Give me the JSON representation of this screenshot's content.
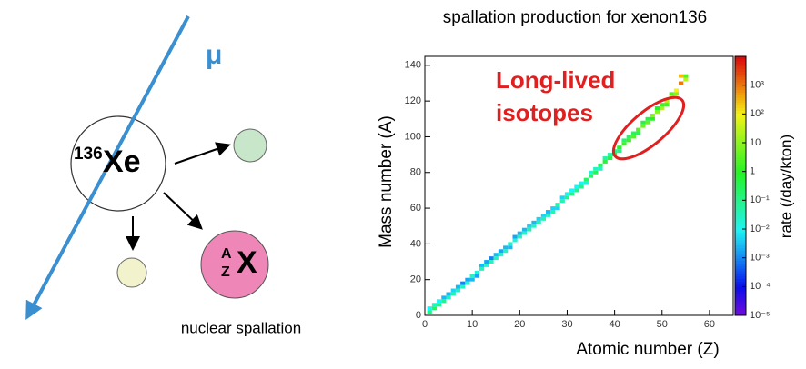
{
  "diagram": {
    "muon": "μ",
    "target_mass": "136",
    "target_symbol": "Xe",
    "product_mass": "A",
    "product_charge": "Z",
    "product_symbol": "X",
    "caption": "nuclear spallation"
  },
  "chart_data": {
    "type": "heatmap",
    "title": "spallation production for xenon136",
    "x_label": "Atomic number (Z)",
    "y_label": "Mass number (A)",
    "z_label": "rate (/day/kton)",
    "annotation": [
      "Long-lived",
      "isotopes"
    ],
    "xlim": [
      0,
      65
    ],
    "xticks": [
      0,
      10,
      20,
      30,
      40,
      50,
      60
    ],
    "ylim": [
      0,
      145
    ],
    "yticks": [
      0,
      20,
      40,
      60,
      80,
      100,
      120,
      140
    ],
    "zlim": [
      1e-05,
      10000
    ],
    "log_z": true,
    "zticks": [
      {
        "value": 1e-05,
        "label": "10⁻⁵"
      },
      {
        "value": 0.0001,
        "label": "10⁻⁴"
      },
      {
        "value": 0.001,
        "label": "10⁻³"
      },
      {
        "value": 0.01,
        "label": "10⁻²"
      },
      {
        "value": 0.1,
        "label": "10⁻¹"
      },
      1,
      10,
      {
        "value": 100,
        "label": "10²"
      },
      {
        "value": 1000,
        "label": "10³"
      }
    ],
    "x": [
      1,
      1,
      2,
      2,
      3,
      3,
      4,
      4,
      5,
      5,
      6,
      6,
      7,
      7,
      8,
      8,
      9,
      9,
      10,
      10,
      11,
      11,
      12,
      12,
      13,
      13,
      14,
      14,
      15,
      15,
      16,
      16,
      17,
      17,
      18,
      18,
      19,
      19,
      20,
      20,
      21,
      21,
      22,
      22,
      23,
      23,
      24,
      24,
      25,
      25,
      26,
      26,
      27,
      27,
      28,
      28,
      29,
      29,
      30,
      30,
      31,
      31,
      32,
      32,
      33,
      33,
      34,
      34,
      35,
      35,
      36,
      36,
      37,
      37,
      38,
      38,
      39,
      39,
      40,
      40,
      41,
      41,
      42,
      42,
      43,
      43,
      44,
      44,
      45,
      45,
      46,
      46,
      47,
      47,
      48,
      48,
      49,
      49,
      50,
      50,
      51,
      51,
      52,
      52,
      53,
      53,
      54,
      54,
      55,
      55
    ],
    "y": [
      2,
      4,
      4,
      6,
      6,
      8,
      8,
      10,
      10,
      12,
      12,
      14,
      14,
      16,
      16,
      18,
      18,
      20,
      22,
      20,
      24,
      22,
      26,
      28,
      28,
      30,
      30,
      32,
      32,
      34,
      34,
      36,
      36,
      38,
      40,
      38,
      42,
      44,
      44,
      46,
      46,
      48,
      48,
      50,
      50,
      52,
      52,
      54,
      54,
      56,
      56,
      58,
      58,
      60,
      62,
      60,
      64,
      66,
      66,
      68,
      68,
      70,
      70,
      72,
      72,
      74,
      76,
      74,
      78,
      80,
      80,
      82,
      84,
      82,
      86,
      88,
      88,
      90,
      90,
      92,
      94,
      92,
      96,
      98,
      98,
      100,
      100,
      102,
      104,
      102,
      106,
      108,
      108,
      110,
      112,
      110,
      114,
      116,
      116,
      118,
      120,
      118,
      122,
      124,
      126,
      124,
      130,
      134,
      132,
      134
    ],
    "values": [
      0.1,
      0.01,
      0.3,
      0.03,
      0.1,
      0.01,
      0.1,
      0.003,
      0.03,
      0.003,
      0.05,
      0.005,
      0.03,
      0.003,
      0.03,
      0.001,
      0.02,
      0.002,
      0.03,
      0.003,
      0.02,
      0.002,
      0.03,
      0.003,
      0.02,
      0.002,
      0.03,
      0.001,
      0.03,
      0.003,
      0.02,
      0.002,
      0.03,
      0.003,
      0.03,
      0.003,
      0.02,
      0.002,
      0.03,
      0.003,
      0.03,
      0.003,
      0.05,
      0.005,
      0.03,
      0.003,
      0.05,
      0.005,
      0.05,
      0.005,
      0.03,
      0.003,
      0.05,
      0.005,
      0.05,
      0.005,
      0.05,
      0.005,
      0.1,
      0.01,
      0.1,
      0.01,
      0.1,
      0.01,
      0.1,
      0.01,
      0.2,
      0.02,
      0.2,
      0.02,
      0.3,
      0.03,
      0.3,
      0.03,
      0.5,
      0.05,
      0.5,
      0.05,
      1,
      0.1,
      1,
      0.1,
      2,
      0.2,
      2,
      0.2,
      3,
      0.3,
      3,
      0.3,
      5,
      0.5,
      5,
      0.5,
      10,
      1,
      10,
      1,
      20,
      2,
      20,
      2,
      30,
      3,
      100,
      10,
      1000,
      300,
      30,
      3
    ]
  }
}
